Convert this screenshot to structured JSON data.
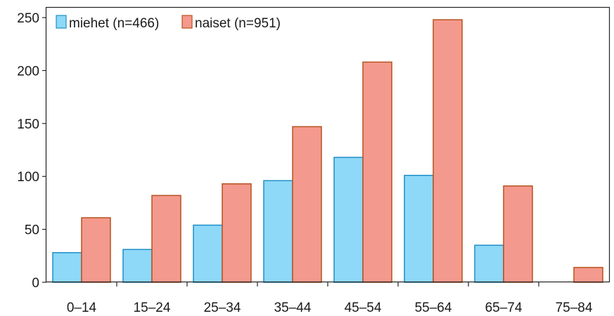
{
  "chart_data": {
    "type": "bar",
    "title": "",
    "xlabel": "",
    "ylabel": "",
    "categories": [
      "0–14",
      "15–24",
      "25–34",
      "35–44",
      "45–54",
      "55–64",
      "65–74",
      "75–84"
    ],
    "series": [
      {
        "name": "miehet (n=466)",
        "values": [
          28,
          31,
          54,
          96,
          118,
          101,
          35,
          0
        ],
        "color": "#8ed8f8",
        "stroke": "#1f8fc6"
      },
      {
        "name": "naiset (n=951)",
        "values": [
          61,
          82,
          93,
          147,
          208,
          248,
          91,
          14
        ],
        "color": "#f4998d",
        "stroke": "#b5531e"
      }
    ],
    "ylim": [
      0,
      260
    ],
    "yticks": [
      0,
      50,
      100,
      150,
      200,
      250
    ],
    "grid": false,
    "legend_position": "top-left"
  }
}
